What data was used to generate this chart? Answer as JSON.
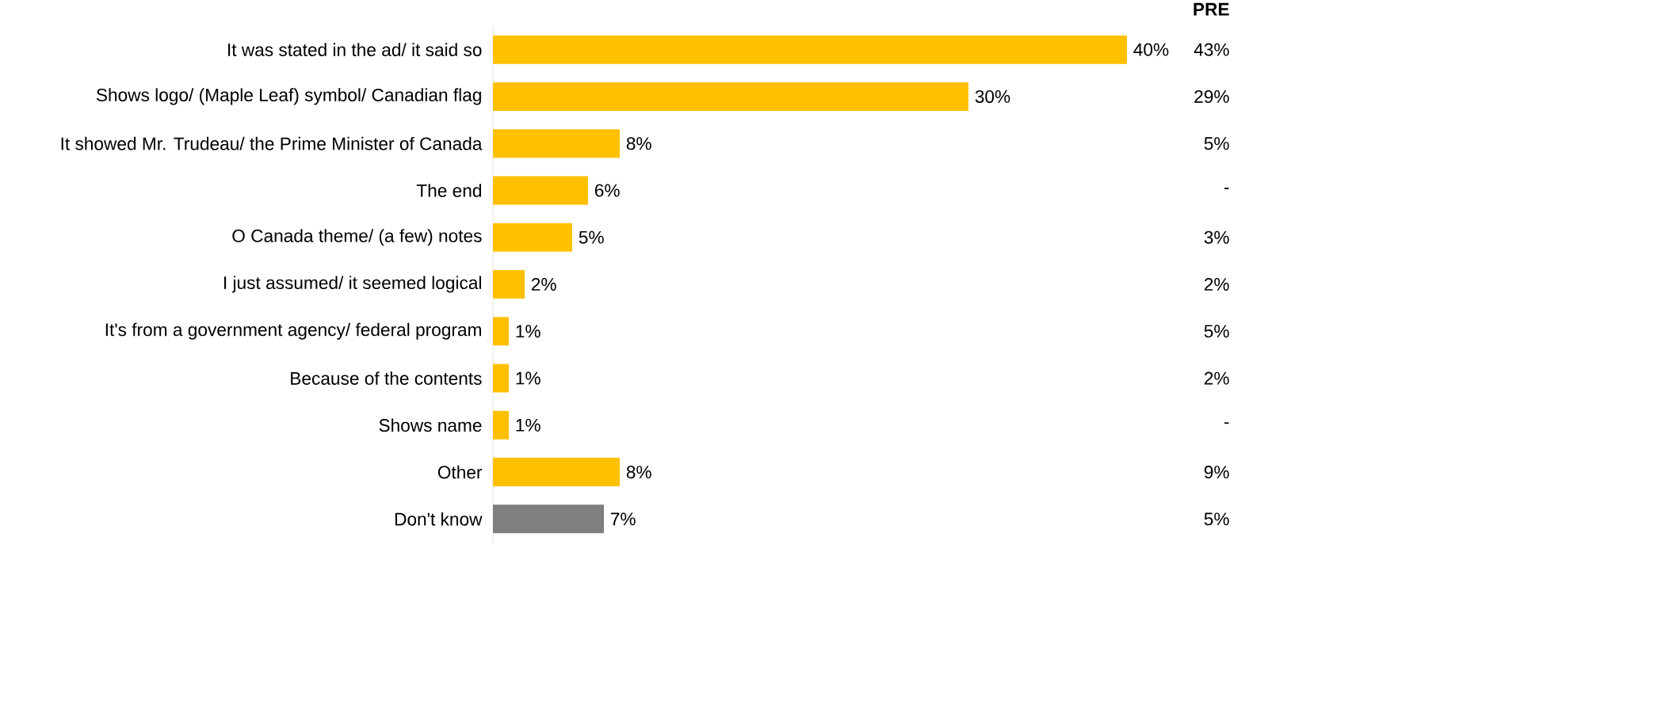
{
  "chart_data": {
    "type": "bar",
    "orientation": "horizontal",
    "categories": [
      "It was stated in the ad/ it said so",
      "Shows logo/ (Maple Leaf) symbol/ Canadian flag",
      "It showed Mr. Trudeau/ the Prime Minister of Canada",
      "The end",
      "O Canada theme/ (a few) notes",
      "I just assumed/ it seemed logical",
      "It's from a government agency/ federal program",
      "Because of the contents",
      "Shows name",
      "Other",
      "Don't know"
    ],
    "values": [
      40,
      30,
      8,
      6,
      5,
      2,
      1,
      1,
      1,
      8,
      7
    ],
    "value_labels": [
      "40%",
      "30%",
      "8%",
      "6%",
      "5%",
      "2%",
      "1%",
      "1%",
      "1%",
      "8%",
      "7%"
    ],
    "colors": [
      "#ffc000",
      "#ffc000",
      "#ffc000",
      "#ffc000",
      "#ffc000",
      "#ffc000",
      "#ffc000",
      "#ffc000",
      "#ffc000",
      "#ffc000",
      "#7f7f7f"
    ],
    "annotations": [
      "PRE",
      "43%",
      "29%",
      "5%",
      "-",
      "3%",
      "2%",
      "5%",
      "2%",
      "-",
      "9%",
      "5%"
    ]
  }
}
